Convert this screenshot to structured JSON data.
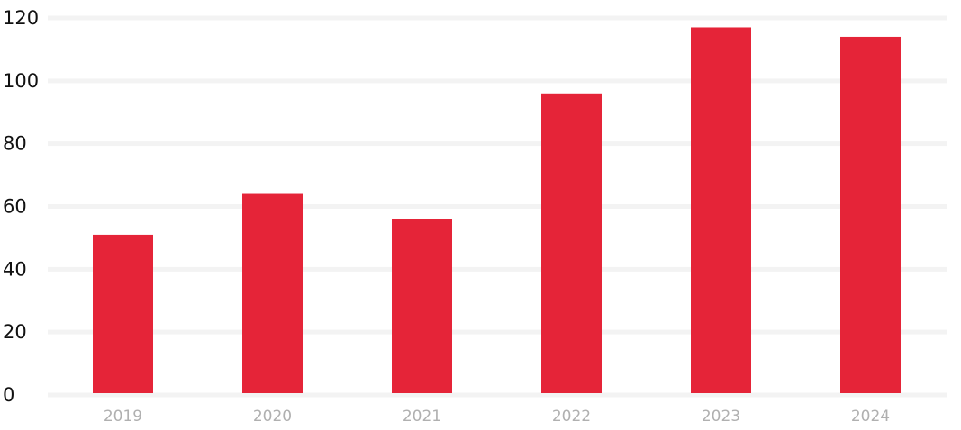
{
  "chart_data": {
    "type": "bar",
    "categories": [
      "2019",
      "2020",
      "2021",
      "2022",
      "2023",
      "2024"
    ],
    "values": [
      51,
      64,
      56,
      96,
      117,
      114
    ],
    "title": "",
    "xlabel": "",
    "ylabel": "",
    "ylim": [
      0,
      120
    ],
    "yticks": [
      0,
      20,
      40,
      60,
      80,
      100,
      120
    ],
    "grid": true,
    "legend": "none",
    "colors": {
      "bar": "#e52438",
      "grid": "#f3f3f3",
      "y_tick_text": "#111111",
      "x_tick_text": "#b0b0b0"
    }
  }
}
